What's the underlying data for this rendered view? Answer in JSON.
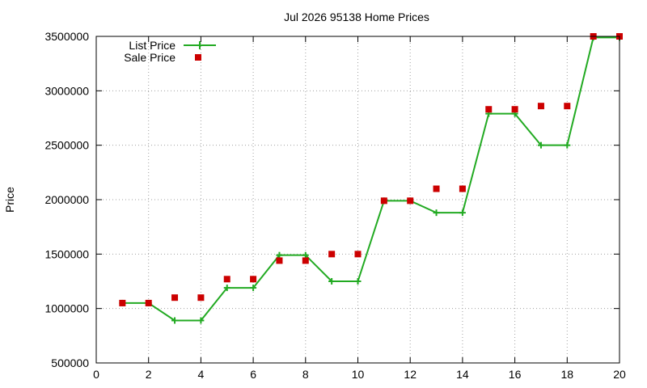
{
  "chart_data": {
    "type": "line",
    "title": "Jul 2026 95138 Home Prices",
    "xlabel": "",
    "ylabel": "Price",
    "xlim": [
      0,
      20
    ],
    "ylim": [
      500000,
      3500000
    ],
    "x_ticks": [
      "0",
      "2",
      "4",
      "6",
      "8",
      "10",
      "12",
      "14",
      "16",
      "18",
      "20"
    ],
    "y_ticks": [
      "500000",
      "1000000",
      "1500000",
      "2000000",
      "2500000",
      "3000000",
      "3500000"
    ],
    "grid": true,
    "legend_position": "top-left",
    "series": [
      {
        "name": "List Price",
        "style": "line with plus markers",
        "color": "#22aa22",
        "x": [
          1,
          2,
          3,
          4,
          5,
          6,
          7,
          8,
          9,
          10,
          11,
          12,
          13,
          14,
          15,
          16,
          17,
          18,
          19,
          20
        ],
        "y": [
          1050000,
          1050000,
          890000,
          890000,
          1190000,
          1190000,
          1490000,
          1490000,
          1250000,
          1250000,
          1990000,
          1990000,
          1880000,
          1880000,
          2790000,
          2790000,
          2500000,
          2500000,
          3490000,
          3490000
        ]
      },
      {
        "name": "Sale Price",
        "style": "square markers",
        "color": "#cc0000",
        "x": [
          1,
          2,
          3,
          4,
          5,
          6,
          7,
          8,
          9,
          10,
          11,
          12,
          13,
          14,
          15,
          16,
          17,
          18,
          19,
          20
        ],
        "y": [
          1050000,
          1050000,
          1100000,
          1100000,
          1270000,
          1270000,
          1440000,
          1440000,
          1500000,
          1500000,
          1990000,
          1990000,
          2100000,
          2100000,
          2830000,
          2830000,
          2860000,
          2860000,
          3500000,
          3500000
        ]
      }
    ]
  }
}
